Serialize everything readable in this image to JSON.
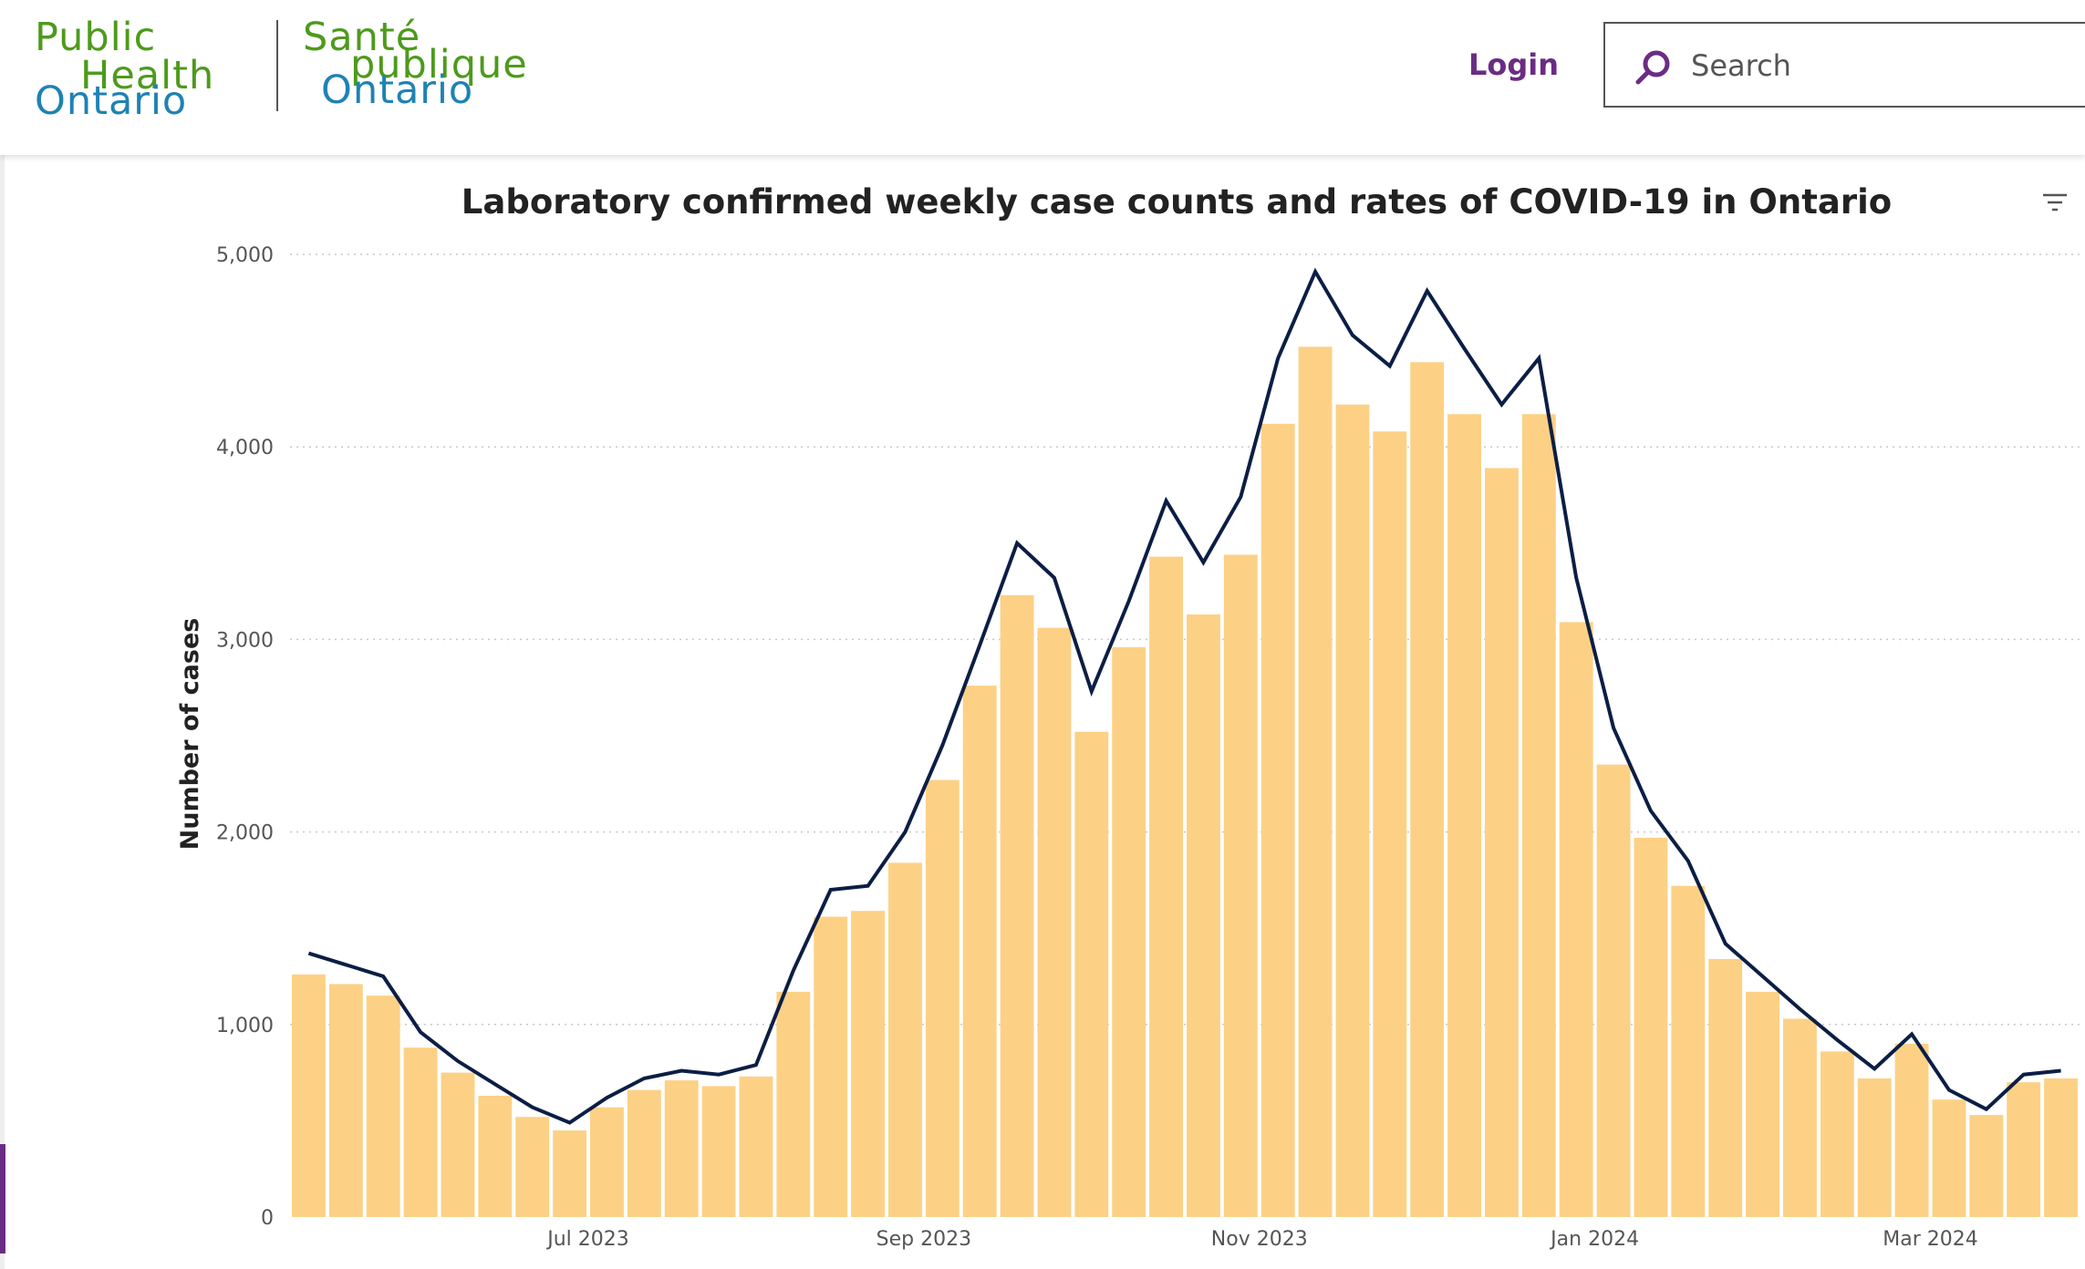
{
  "header": {
    "logo_en": [
      "Public",
      "Health",
      "Ontario"
    ],
    "logo_fr": [
      "Santé",
      "publique",
      "Ontario"
    ],
    "login_label": "Login",
    "search_placeholder": "Search"
  },
  "colors": {
    "bar": "#fcd186",
    "line": "#0b1e45",
    "grid": "#c8c8c8",
    "logo_green": "#4e9a1c",
    "logo_blue": "#1f82b3",
    "brand_purple": "#6b2c83"
  },
  "chart_data": {
    "type": "bar",
    "title": "Laboratory confirmed weekly case counts and rates of COVID-19 in Ontario",
    "ylabel": "Number of cases",
    "ylim": [
      0,
      5000
    ],
    "yticks": [
      0,
      1000,
      2000,
      3000,
      4000,
      5000
    ],
    "ytick_labels": [
      "0",
      "1,000",
      "2,000",
      "3,000",
      "4,000",
      "5,000"
    ],
    "x_tick_labels": [
      {
        "label": "Jul 2023",
        "after_week": 7
      },
      {
        "label": "Sep 2023",
        "after_week": 16
      },
      {
        "label": "Nov 2023",
        "after_week": 25
      },
      {
        "label": "Jan 2024",
        "after_week": 34
      },
      {
        "label": "Mar 2024",
        "after_week": 43
      }
    ],
    "grid": "horizontal dotted",
    "series": [
      {
        "kind": "bar",
        "values": [
          1260,
          1210,
          1150,
          880,
          750,
          630,
          520,
          450,
          570,
          660,
          710,
          680,
          730,
          1170,
          1560,
          1590,
          1840,
          2270,
          2760,
          3230,
          3060,
          2520,
          2960,
          3430,
          3130,
          3440,
          4120,
          4520,
          4220,
          4080,
          4440,
          4170,
          3890,
          4170,
          3090,
          2350,
          1970,
          1720,
          1340,
          1170,
          1030,
          860,
          720,
          900,
          610,
          530,
          700,
          720
        ]
      },
      {
        "kind": "line",
        "values": [
          1370,
          1310,
          1250,
          960,
          810,
          690,
          570,
          490,
          620,
          720,
          760,
          740,
          790,
          1280,
          1700,
          1720,
          2000,
          2450,
          2970,
          3500,
          3320,
          2730,
          3200,
          3720,
          3400,
          3740,
          4460,
          4910,
          4580,
          4420,
          4810,
          4510,
          4220,
          4460,
          3320,
          2540,
          2110,
          1850,
          1420,
          1250,
          1080,
          920,
          770,
          950,
          660,
          560,
          740,
          760
        ]
      }
    ]
  }
}
